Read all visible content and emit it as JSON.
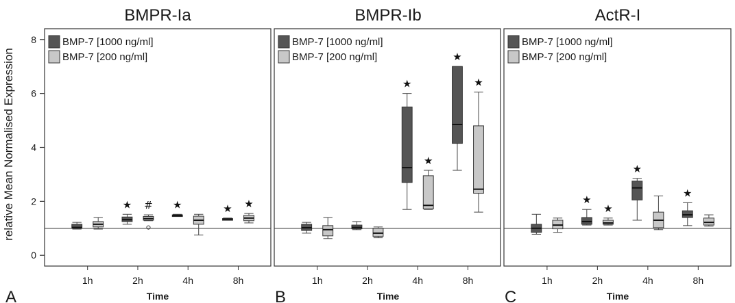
{
  "y_axis_label": "relative Mean Normalised Expression",
  "chart_data": [
    {
      "type": "box",
      "panel_letter": "A",
      "title": "BMPR-Ia",
      "xlabel": "Time",
      "categories": [
        "1h",
        "2h",
        "4h",
        "8h"
      ],
      "ylim": [
        -0.4,
        8.4
      ],
      "yticks": [
        0,
        2,
        4,
        6,
        8
      ],
      "reference_line": 1,
      "legend": "top-left",
      "series": [
        {
          "name": "BMP-7 [1000 ng/ml]",
          "color": "#555555",
          "boxes": [
            {
              "min": 0.97,
              "q1": 1.0,
              "median": 1.03,
              "q3": 1.15,
              "max": 1.22,
              "marker": ""
            },
            {
              "min": 1.15,
              "q1": 1.25,
              "median": 1.32,
              "q3": 1.42,
              "max": 1.52,
              "marker": "★"
            },
            {
              "min": 1.44,
              "q1": 1.44,
              "median": 1.47,
              "q3": 1.5,
              "max": 1.52,
              "marker": "★"
            },
            {
              "min": 1.31,
              "q1": 1.32,
              "median": 1.34,
              "q3": 1.36,
              "max": 1.38,
              "marker": "★"
            }
          ]
        },
        {
          "name": "BMP-7 [200 ng/ml]",
          "color": "#c8c8c8",
          "boxes": [
            {
              "min": 0.97,
              "q1": 1.05,
              "median": 1.15,
              "q3": 1.25,
              "max": 1.4,
              "marker": ""
            },
            {
              "min": 1.28,
              "q1": 1.3,
              "median": 1.36,
              "q3": 1.44,
              "max": 1.5,
              "outlier": 1.03,
              "marker": "#"
            },
            {
              "min": 0.75,
              "q1": 1.15,
              "median": 1.3,
              "q3": 1.45,
              "max": 1.52,
              "marker": ""
            },
            {
              "min": 1.2,
              "q1": 1.28,
              "median": 1.38,
              "q3": 1.48,
              "max": 1.55,
              "marker": "★"
            }
          ]
        }
      ]
    },
    {
      "type": "box",
      "panel_letter": "B",
      "title": "BMPR-Ib",
      "xlabel": "Time",
      "categories": [
        "1h",
        "2h",
        "4h",
        "8h"
      ],
      "ylim": [
        -0.4,
        8.4
      ],
      "yticks": [
        0,
        2,
        4,
        6,
        8
      ],
      "reference_line": 1,
      "legend": "top-left",
      "series": [
        {
          "name": "BMP-7 [1000 ng/ml]",
          "color": "#555555",
          "boxes": [
            {
              "min": 0.82,
              "q1": 0.92,
              "median": 1.02,
              "q3": 1.15,
              "max": 1.22,
              "marker": ""
            },
            {
              "min": 0.95,
              "q1": 0.98,
              "median": 1.03,
              "q3": 1.12,
              "max": 1.25,
              "marker": ""
            },
            {
              "min": 1.7,
              "q1": 2.7,
              "median": 3.25,
              "q3": 5.5,
              "max": 6.0,
              "marker": "★"
            },
            {
              "min": 3.15,
              "q1": 4.15,
              "median": 4.85,
              "q3": 7.0,
              "max": 7.0,
              "marker": "★"
            }
          ]
        },
        {
          "name": "BMP-7 [200 ng/ml]",
          "color": "#c8c8c8",
          "boxes": [
            {
              "min": 0.62,
              "q1": 0.72,
              "median": 0.95,
              "q3": 1.1,
              "max": 1.4,
              "marker": ""
            },
            {
              "min": 0.65,
              "q1": 0.7,
              "median": 0.82,
              "q3": 1.0,
              "max": 1.05,
              "marker": ""
            },
            {
              "min": 1.7,
              "q1": 1.72,
              "median": 1.85,
              "q3": 2.95,
              "max": 3.15,
              "marker": "★"
            },
            {
              "min": 1.6,
              "q1": 2.3,
              "median": 2.45,
              "q3": 4.8,
              "max": 6.05,
              "marker": "★"
            }
          ]
        }
      ]
    },
    {
      "type": "box",
      "panel_letter": "C",
      "title": "ActR-I",
      "xlabel": "Time",
      "categories": [
        "1h",
        "2h",
        "4h",
        "8h"
      ],
      "ylim": [
        -0.4,
        8.4
      ],
      "yticks": [
        0,
        2,
        4,
        6,
        8
      ],
      "reference_line": 1,
      "legend": "top-left",
      "series": [
        {
          "name": "BMP-7 [1000 ng/ml]",
          "color": "#555555",
          "boxes": [
            {
              "min": 0.78,
              "q1": 0.85,
              "median": 1.0,
              "q3": 1.15,
              "max": 1.52,
              "marker": ""
            },
            {
              "min": 1.12,
              "q1": 1.15,
              "median": 1.25,
              "q3": 1.4,
              "max": 1.7,
              "marker": "★"
            },
            {
              "min": 1.3,
              "q1": 2.05,
              "median": 2.5,
              "q3": 2.75,
              "max": 2.85,
              "marker": "★"
            },
            {
              "min": 1.1,
              "q1": 1.4,
              "median": 1.5,
              "q3": 1.65,
              "max": 1.95,
              "marker": "★"
            }
          ]
        },
        {
          "name": "BMP-7 [200 ng/ml]",
          "color": "#c8c8c8",
          "boxes": [
            {
              "min": 0.85,
              "q1": 0.98,
              "median": 1.12,
              "q3": 1.3,
              "max": 1.38,
              "marker": ""
            },
            {
              "min": 1.12,
              "q1": 1.15,
              "median": 1.2,
              "q3": 1.3,
              "max": 1.38,
              "marker": "★"
            },
            {
              "min": 0.95,
              "q1": 1.02,
              "median": 1.3,
              "q3": 1.6,
              "max": 2.2,
              "marker": ""
            },
            {
              "min": 1.08,
              "q1": 1.12,
              "median": 1.22,
              "q3": 1.38,
              "max": 1.5,
              "marker": ""
            }
          ]
        }
      ]
    }
  ]
}
